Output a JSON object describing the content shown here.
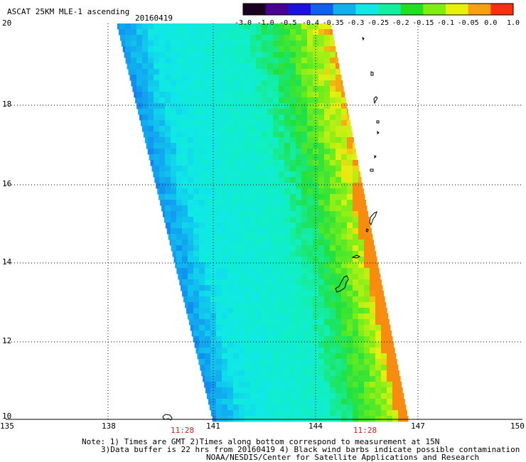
{
  "title": "ASCAT 25KM MLE-1 ascending",
  "date": "20160419",
  "colorbar": {
    "labels": [
      "-3.0",
      "-1.0",
      "-0.5",
      "-0.4",
      "-0.35",
      "-0.3",
      "-0.25",
      "-0.2",
      "-0.15",
      "-0.1",
      "-0.05",
      "0.0",
      "1.0"
    ],
    "colors": [
      "#1a0020",
      "#4a0090",
      "#1a10e0",
      "#1060f0",
      "#10b0f0",
      "#10e8e8",
      "#10f0a0",
      "#20e020",
      "#80ee10",
      "#e8f010",
      "#f8a010",
      "#f83010"
    ]
  },
  "axes": {
    "lon_labels": [
      "135",
      "138",
      "141",
      "144",
      "147",
      "150"
    ],
    "lat_labels": [
      "20",
      "18",
      "16",
      "14",
      "12",
      "10"
    ]
  },
  "times": [
    "11:28",
    "11:28"
  ],
  "notes": [
    "Note: 1) Times are GMT 2)Times along bottom correspond to measurement at 15N",
    "3)Data buffer is 22 hrs from 20160419 4) Black wind barbs indicate possible contamination",
    "NOAA/NESDIS/Center for Satellite Applications and Research"
  ]
}
